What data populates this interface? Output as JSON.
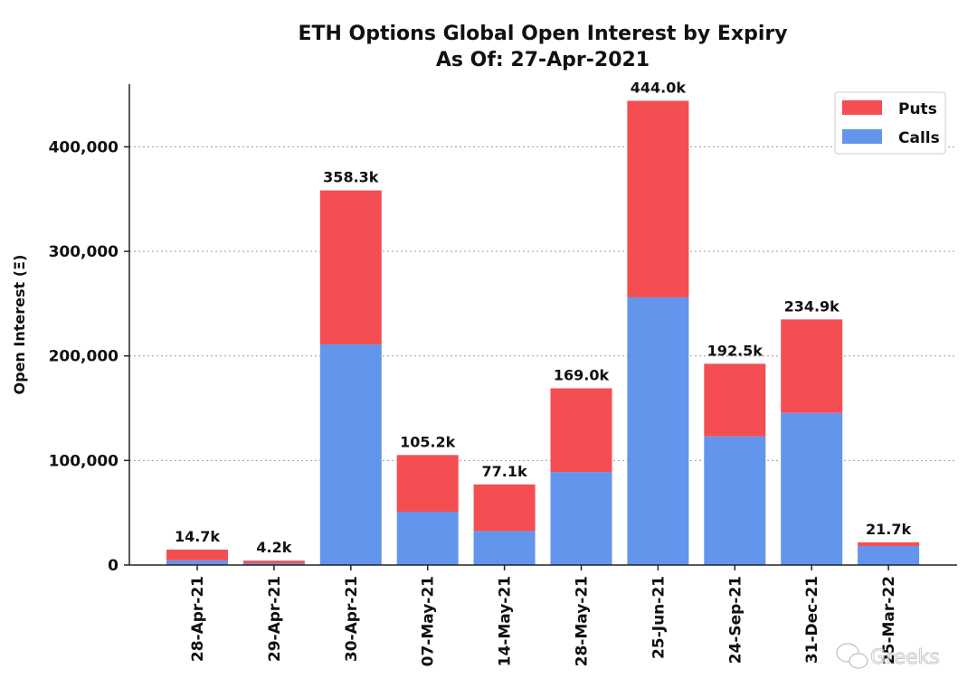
{
  "chart_data": {
    "type": "bar",
    "stacked": true,
    "title": "ETH Options Global Open Interest by Expiry",
    "subtitle": "As Of: 27-Apr-2021",
    "xlabel": "",
    "ylabel": "Open Interest (Ξ)",
    "ylim": [
      0,
      460000
    ],
    "yticks": [
      0,
      100000,
      200000,
      300000,
      400000
    ],
    "ytick_labels": [
      "0",
      "100,000",
      "200,000",
      "300,000",
      "400,000"
    ],
    "grid": "horizontal dotted",
    "legend_position": "top-right",
    "categories": [
      "28-Apr-21",
      "29-Apr-21",
      "30-Apr-21",
      "07-May-21",
      "14-May-21",
      "28-May-21",
      "25-Jun-21",
      "24-Sep-21",
      "31-Dec-21",
      "25-Mar-22"
    ],
    "series": [
      {
        "name": "Calls",
        "color": "#6495ED",
        "values": [
          4500,
          1800,
          211000,
          51000,
          32500,
          89000,
          256000,
          123000,
          145500,
          18200
        ]
      },
      {
        "name": "Puts",
        "color": "#F44E52",
        "values": [
          10200,
          2400,
          147300,
          54200,
          44600,
          80000,
          188000,
          69500,
          89400,
          3500
        ]
      }
    ],
    "totals": [
      14700,
      4200,
      358300,
      105200,
      77100,
      169000,
      444000,
      192500,
      234900,
      21700
    ],
    "total_labels": [
      "14.7k",
      "4.2k",
      "358.3k",
      "105.2k",
      "77.1k",
      "169.0k",
      "444.0k",
      "192.5k",
      "234.9k",
      "21.7k"
    ],
    "legend_order": [
      "Puts",
      "Calls"
    ]
  },
  "watermark": {
    "text": "Greeks",
    "icon": "wechat-icon"
  }
}
